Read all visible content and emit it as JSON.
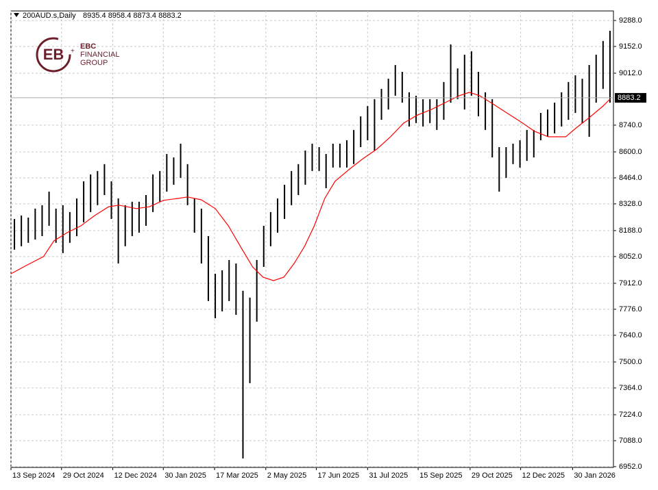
{
  "chart_data": {
    "type": "hilo",
    "symbol": "200AUD.s,Daily",
    "ohlc": "8935.4 8958.4 8873.4 8883.2",
    "logo": {
      "top": "EBC",
      "middle": "FINANCIAL",
      "bottom": "GROUP"
    },
    "current_price": 8883.2,
    "color": "#000000",
    "x": [
      0.5,
      1.5,
      2.5,
      3.5,
      4.5,
      5.5,
      6.5,
      7.5,
      8.5,
      9.5,
      10.5,
      11.5,
      12.5,
      13.5,
      14.5,
      15.5,
      16.5,
      17.5,
      18.5,
      19.5,
      20.5,
      21.5,
      22.5,
      23.5,
      24.5,
      25.5,
      26.5,
      27.5,
      28.5,
      29.5,
      30.5,
      31.5,
      32.5,
      33.5,
      34.5,
      35.5,
      36.5,
      37.5,
      38.5,
      39.5,
      40.5,
      41.5,
      42.5,
      43.5,
      44.5,
      45.5,
      46.5,
      47.5,
      48.5,
      49.5,
      50.5,
      51.5,
      52.5,
      53.5,
      54.5,
      55.5,
      56.5,
      57.5,
      58.5,
      59.5,
      60.5,
      61.5,
      62.5,
      63.5,
      64.5,
      65.5,
      66.5,
      67.5,
      68.5,
      69.5,
      70.5,
      71.5,
      72.5,
      73.5,
      74.5,
      75.5,
      76.5,
      77.5,
      78.5,
      79.5,
      80.5,
      81.5,
      82.5,
      83.5,
      84.5,
      85.5,
      86.5
    ],
    "high": [
      8249,
      8267,
      8256,
      8303,
      8321,
      8392,
      8303,
      8321,
      8285,
      8356,
      8446,
      8482,
      8500,
      8536,
      8446,
      8356,
      8321,
      8339,
      8339,
      8374,
      8482,
      8500,
      8589,
      8571,
      8643,
      8536,
      8356,
      8303,
      8159,
      7962,
      7980,
      8034,
      8016,
      7873,
      7837,
      8034,
      8213,
      8285,
      8356,
      8428,
      8500,
      8536,
      8607,
      8643,
      8625,
      8589,
      8643,
      8643,
      8661,
      8715,
      8786,
      8840,
      8876,
      8930,
      8983,
      9055,
      9019,
      8912,
      8894,
      8876,
      8876,
      8876,
      8966,
      9163,
      9037,
      9109,
      9127,
      9019,
      8912,
      8876,
      8625,
      8625,
      8643,
      8661,
      8715,
      8715,
      8804,
      8822,
      8858,
      8912,
      8966,
      9001,
      8983,
      9055,
      9109,
      9181,
      9234
    ],
    "low": [
      8088,
      8106,
      8124,
      8141,
      8159,
      8213,
      8124,
      8070,
      8124,
      8159,
      8231,
      8285,
      8321,
      8374,
      8249,
      8016,
      8106,
      8159,
      8177,
      8213,
      8285,
      8339,
      8392,
      8428,
      8464,
      8321,
      8177,
      8016,
      7819,
      7729,
      7765,
      7819,
      7747,
      6995,
      7389,
      7711,
      7998,
      8106,
      8177,
      8249,
      8321,
      8374,
      8428,
      8500,
      8500,
      8410,
      8518,
      8518,
      8518,
      8536,
      8625,
      8661,
      8607,
      8768,
      8822,
      8894,
      8858,
      8733,
      8751,
      8733,
      8751,
      8715,
      8768,
      8858,
      8876,
      8822,
      8894,
      8786,
      8715,
      8571,
      8392,
      8464,
      8536,
      8518,
      8553,
      8571,
      8661,
      8679,
      8697,
      8733,
      8768,
      8804,
      8751,
      8679,
      8858,
      8930,
      8858
    ],
    "ma": {
      "color": "#ff0000",
      "x": [
        0,
        2.2,
        4.7,
        6.2,
        8.1,
        10.1,
        12.1,
        14.1,
        15.6,
        18.1,
        20.0,
        22.0,
        24.0,
        25.5,
        27.5,
        29.5,
        31.4,
        33.4,
        34.9,
        36.4,
        37.9,
        39.4,
        40.9,
        42.4,
        43.8,
        45.3,
        46.8,
        48.8,
        50.8,
        52.8,
        54.8,
        56.7,
        58.7,
        60.7,
        62.7,
        64.7,
        66.2,
        67.7,
        69.6,
        71.6,
        73.6,
        75.6,
        77.6,
        80.1,
        81.5,
        83.5,
        85.5,
        86.5
      ],
      "values": [
        7962,
        8005,
        8052,
        8134,
        8177,
        8213,
        8267,
        8313,
        8321,
        8303,
        8313,
        8346,
        8356,
        8364,
        8349,
        8303,
        8213,
        8088,
        7998,
        7944,
        7926,
        7944,
        8016,
        8106,
        8213,
        8356,
        8446,
        8507,
        8564,
        8614,
        8679,
        8751,
        8793,
        8822,
        8858,
        8894,
        8912,
        8894,
        8851,
        8804,
        8758,
        8708,
        8679,
        8679,
        8722,
        8779,
        8840,
        8876
      ]
    },
    "xlim": [
      0,
      87
    ],
    "ylim": [
      6948,
      9338
    ],
    "xticks": [
      {
        "value": 0,
        "label": "13 Sep 2024"
      },
      {
        "value": 7.3,
        "label": "29 Oct 2024"
      },
      {
        "value": 14.7,
        "label": "12 Dec 2024"
      },
      {
        "value": 22.0,
        "label": "30 Jan 2025"
      },
      {
        "value": 29.4,
        "label": "17 Mar 2025"
      },
      {
        "value": 36.8,
        "label": "2 May 2025"
      },
      {
        "value": 44.1,
        "label": "17 Jun 2025"
      },
      {
        "value": 51.5,
        "label": "31 Jul 2025"
      },
      {
        "value": 58.8,
        "label": "15 Sep 2025"
      },
      {
        "value": 66.3,
        "label": "29 Oct 2025"
      },
      {
        "value": 73.6,
        "label": "12 Dec 2025"
      },
      {
        "value": 81.1,
        "label": "30 Jan 2026"
      }
    ],
    "yticks": [
      {
        "value": 9288,
        "label": "9288.0"
      },
      {
        "value": 9152,
        "label": "9152.0"
      },
      {
        "value": 9012,
        "label": "9012.0"
      },
      {
        "value": 8740,
        "label": "8740.0"
      },
      {
        "value": 8600,
        "label": "8600.0"
      },
      {
        "value": 8464,
        "label": "8464.0"
      },
      {
        "value": 8328,
        "label": "8328.0"
      },
      {
        "value": 8188,
        "label": "8188.0"
      },
      {
        "value": 8052,
        "label": "8052.0"
      },
      {
        "value": 7912,
        "label": "7912.0"
      },
      {
        "value": 7776,
        "label": "7776.0"
      },
      {
        "value": 7640,
        "label": "7640.0"
      },
      {
        "value": 7500,
        "label": "7500.0"
      },
      {
        "value": 7364,
        "label": "7364.0"
      },
      {
        "value": 7224,
        "label": "7224.0"
      },
      {
        "value": 7088,
        "label": "7088.0"
      },
      {
        "value": 6952,
        "label": "6952.0"
      }
    ],
    "grid": true
  }
}
